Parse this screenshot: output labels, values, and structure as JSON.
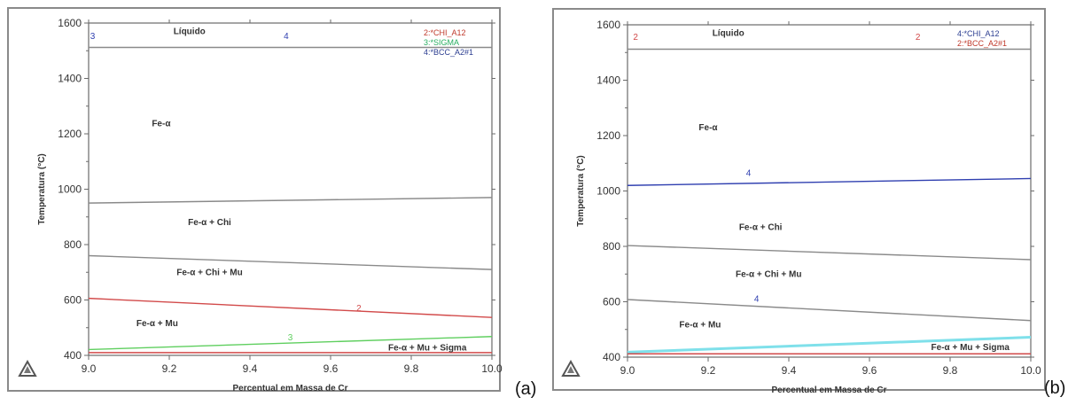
{
  "colors": {
    "frame": "#8a8a8a",
    "axis": "#6a6a6a",
    "text": "#333333",
    "red": "#d24a4a",
    "green": "#5fcf5f",
    "blue": "#2f3fb0",
    "cyan": "#7fe0ea",
    "legend_red": "#c0392b",
    "legend_green": "#27ae60",
    "legend_blue": "#2c3e91"
  },
  "logo_icon": "thermo-calc-triangle-logo-icon",
  "chart_data": [
    {
      "type": "line",
      "panel_label": "(a)",
      "xlabel": "Percentual em Massa de Cr",
      "ylabel": "Temperatura (°C)",
      "xlim": [
        9.0,
        10.0
      ],
      "ylim": [
        400,
        1600
      ],
      "xticks": [
        9.0,
        9.2,
        9.4,
        9.6,
        9.8,
        10.0
      ],
      "xtick_labels": [
        "9.0",
        "9.2",
        "9.4",
        "9.6",
        "9.8",
        "10.0"
      ],
      "yticks": [
        400,
        600,
        800,
        1000,
        1200,
        1400,
        1600
      ],
      "ytick_labels": [
        "400",
        "600",
        "800",
        "1000",
        "1200",
        "1400",
        "1600"
      ],
      "grid": false,
      "legend_position": "top-right",
      "legend": [
        {
          "text": "2:*CHI_A12",
          "color": "legend_red"
        },
        {
          "text": "3:*SIGMA",
          "color": "legend_green"
        },
        {
          "text": "4:*BCC_A2#1",
          "color": "legend_blue"
        }
      ],
      "series": [
        {
          "x": [
            9.0,
            10.0
          ],
          "y": [
            1512,
            1512
          ],
          "color": "frame"
        },
        {
          "x": [
            9.0,
            10.0
          ],
          "y": [
            950,
            970
          ],
          "color": "frame"
        },
        {
          "x": [
            9.0,
            10.0
          ],
          "y": [
            760,
            710
          ],
          "color": "frame"
        },
        {
          "x": [
            9.0,
            10.0
          ],
          "y": [
            606,
            537
          ],
          "color": "red"
        },
        {
          "x": [
            9.0,
            10.0
          ],
          "y": [
            421,
            468
          ],
          "color": "green"
        },
        {
          "x": [
            9.0,
            10.0
          ],
          "y": [
            410,
            410
          ],
          "color": "red"
        }
      ],
      "region_labels": [
        {
          "text": "Líquido",
          "x": 9.25,
          "y": 1560
        },
        {
          "text": "Fe-α",
          "x": 9.18,
          "y": 1228
        },
        {
          "text": "Fe-α + Chi",
          "x": 9.3,
          "y": 870
        },
        {
          "text": "Fe-α + Chi + Mu",
          "x": 9.3,
          "y": 690
        },
        {
          "text": "Fe-α + Mu",
          "x": 9.17,
          "y": 506
        },
        {
          "text": "Fe-α + Mu + Sigma",
          "x": 9.84,
          "y": 418
        }
      ],
      "curve_labels": [
        {
          "text": "3",
          "x": 9.01,
          "y": 1543,
          "color": "blue"
        },
        {
          "text": "4",
          "x": 9.49,
          "y": 1543,
          "color": "blue"
        },
        {
          "text": "2",
          "x": 9.67,
          "y": 560,
          "color": "red"
        },
        {
          "text": "3",
          "x": 9.5,
          "y": 455,
          "color": "green"
        }
      ]
    },
    {
      "type": "line",
      "panel_label": "(b)",
      "xlabel": "Percentual em Massa de Cr",
      "ylabel": "Temperatura (°C)",
      "xlim": [
        9.0,
        10.0
      ],
      "ylim": [
        400,
        1600
      ],
      "xticks": [
        9.0,
        9.2,
        9.4,
        9.6,
        9.8,
        10.0
      ],
      "xtick_labels": [
        "9.0",
        "9.2",
        "9.4",
        "9.6",
        "9.8",
        "10.0"
      ],
      "yticks": [
        400,
        600,
        800,
        1000,
        1200,
        1400,
        1600
      ],
      "ytick_labels": [
        "400",
        "600",
        "800",
        "1000",
        "1200",
        "1400",
        "1600"
      ],
      "grid": false,
      "legend_position": "top-right",
      "legend": [
        {
          "text": "4:*CHI_A12",
          "color": "legend_blue"
        },
        {
          "text": "2:*BCC_A2#1",
          "color": "legend_red"
        }
      ],
      "series": [
        {
          "x": [
            9.0,
            10.0
          ],
          "y": [
            1512,
            1512
          ],
          "color": "frame"
        },
        {
          "x": [
            9.0,
            10.0
          ],
          "y": [
            1020,
            1045
          ],
          "color": "blue"
        },
        {
          "x": [
            9.0,
            10.0
          ],
          "y": [
            803,
            752
          ],
          "color": "frame"
        },
        {
          "x": [
            9.0,
            10.0
          ],
          "y": [
            608,
            532
          ],
          "color": "frame"
        },
        {
          "x": [
            9.0,
            10.0
          ],
          "y": [
            418,
            472
          ],
          "color": "cyan"
        },
        {
          "x": [
            9.0,
            10.0
          ],
          "y": [
            412,
            412
          ],
          "color": "red"
        }
      ],
      "region_labels": [
        {
          "text": "Líquido",
          "x": 9.25,
          "y": 1560
        },
        {
          "text": "Fe-α",
          "x": 9.2,
          "y": 1220
        },
        {
          "text": "Fe-α + Chi",
          "x": 9.33,
          "y": 860
        },
        {
          "text": "Fe-α + Chi + Mu",
          "x": 9.35,
          "y": 690
        },
        {
          "text": "Fe-α + Mu",
          "x": 9.18,
          "y": 508
        },
        {
          "text": "Fe-α + Mu + Sigma",
          "x": 9.85,
          "y": 425
        }
      ],
      "curve_labels": [
        {
          "text": "2",
          "x": 9.02,
          "y": 1545,
          "color": "red"
        },
        {
          "text": "2",
          "x": 9.72,
          "y": 1545,
          "color": "red"
        },
        {
          "text": "4",
          "x": 9.3,
          "y": 1055,
          "color": "blue"
        },
        {
          "text": "4",
          "x": 9.32,
          "y": 600,
          "color": "blue"
        }
      ]
    }
  ]
}
